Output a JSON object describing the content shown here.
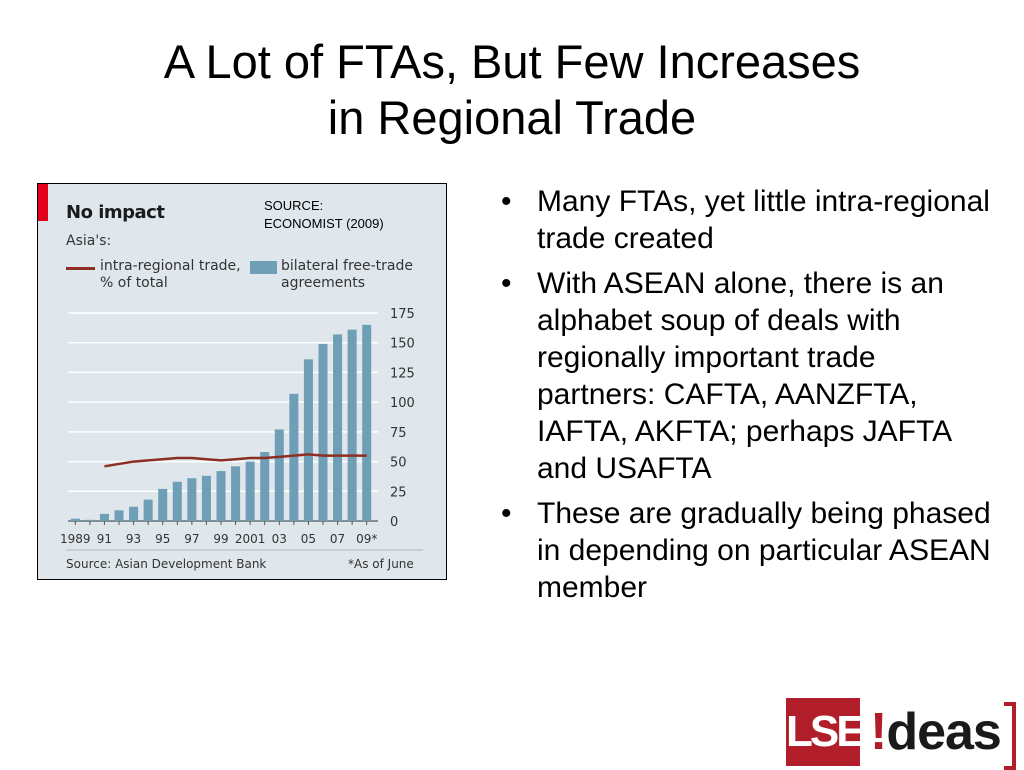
{
  "slide": {
    "title_line1": "A Lot of FTAs, But Few Increases",
    "title_line2": "in Regional Trade",
    "source_note_line1": "SOURCE:",
    "source_note_line2": "ECONOMIST (2009)",
    "bullets": [
      "Many FTAs, yet little intra-regional trade created",
      "With ASEAN alone, there is an alphabet soup of deals with regionally important trade partners: CAFTA, AANZFTA, IAFTA, AKFTA; perhaps JAFTA and USAFTA",
      "These are gradually being phased in depending on particular ASEAN member"
    ],
    "bullet_symbol": "•",
    "logo": {
      "lse": "LSE",
      "ideas_bang": "!",
      "ideas_rest": "deas"
    },
    "colors": {
      "logo_red": "#b21d2a",
      "chart_bg": "#dfe7ec",
      "bar": "#6e9fb6",
      "line": "#8c2f22",
      "economist_red": "#e3001b"
    }
  },
  "chart_data": {
    "type": "bar",
    "title": "No impact",
    "subtitle": "Asia's:",
    "source": "Source: Asian Development Bank",
    "footnote": "*As of June",
    "tick_labels": [
      "1989",
      "91",
      "93",
      "95",
      "97",
      "99",
      "2001",
      "03",
      "05",
      "07",
      "09*"
    ],
    "years": [
      1989,
      1990,
      1991,
      1992,
      1993,
      1994,
      1995,
      1996,
      1997,
      1998,
      1999,
      2000,
      2001,
      2002,
      2003,
      2004,
      2005,
      2006,
      2007,
      2008,
      2009
    ],
    "ylim": [
      0,
      175
    ],
    "yticks": [
      0,
      25,
      50,
      75,
      100,
      125,
      150,
      175
    ],
    "grid": true,
    "series": [
      {
        "name": "bilateral free-trade agreements",
        "kind": "bar",
        "values": [
          2,
          1,
          6,
          9,
          12,
          18,
          27,
          33,
          36,
          38,
          42,
          46,
          50,
          58,
          77,
          107,
          136,
          149,
          157,
          161,
          165
        ]
      },
      {
        "name": "intra-regional trade, % of total",
        "kind": "line",
        "values": [
          null,
          null,
          46,
          48,
          50,
          51,
          52,
          53,
          53,
          52,
          51,
          52,
          53,
          53,
          54,
          55,
          56,
          55,
          55,
          55,
          55
        ]
      }
    ]
  }
}
